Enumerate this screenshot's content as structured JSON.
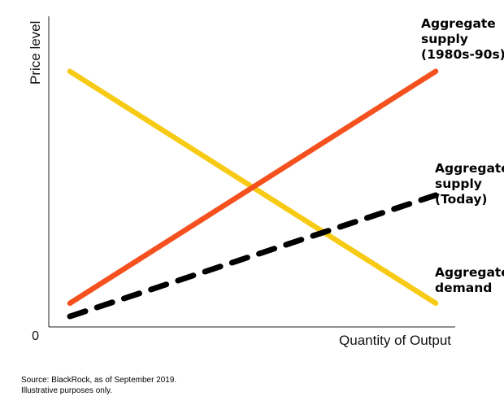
{
  "chart_data": {
    "type": "line",
    "xlabel": "Quantity of Output",
    "ylabel": "Price level",
    "origin_label": "0",
    "x": [
      0,
      1
    ],
    "series": [
      {
        "name": "Aggregate supply (1980s-90s)",
        "label_lines": [
          "Aggregate",
          "supply",
          "(1980s-90s)"
        ],
        "values": [
          0.09,
          0.97
        ],
        "color": "#f4511e",
        "style": "solid"
      },
      {
        "name": "Aggregate supply (Today)",
        "label_lines": [
          "Aggregate",
          "supply",
          "(Today)"
        ],
        "values": [
          0.04,
          0.5
        ],
        "color": "#000000",
        "style": "dashed"
      },
      {
        "name": "Aggregate demand",
        "label_lines": [
          "Aggregate",
          "demand"
        ],
        "values": [
          0.97,
          0.09
        ],
        "color": "#f7cb15",
        "style": "solid"
      }
    ],
    "grid": false,
    "legend": "none"
  },
  "footnote": {
    "line1": "Source: BlackRock, as of September 2019.",
    "line2": "Illustrative purposes only."
  }
}
